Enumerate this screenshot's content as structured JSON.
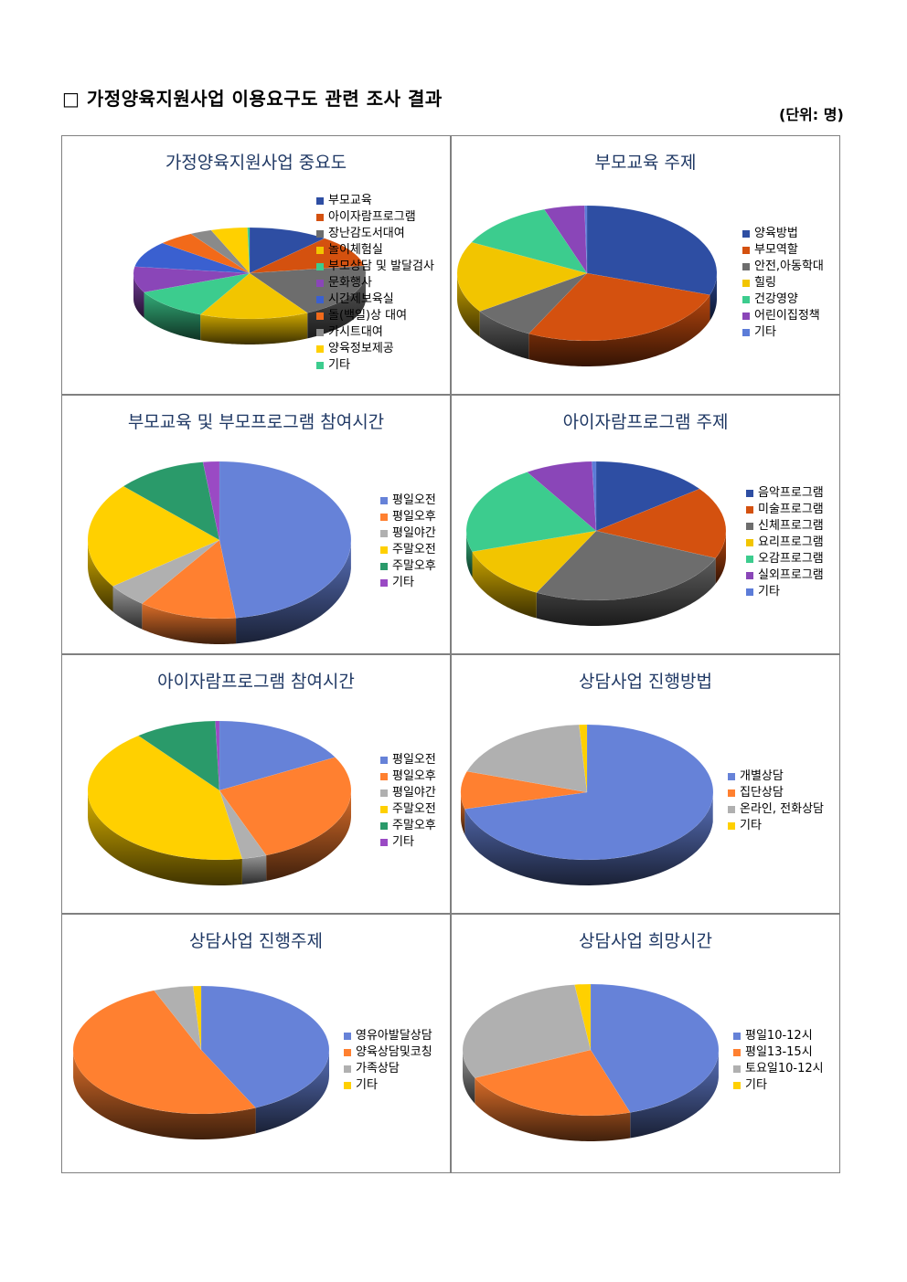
{
  "page": {
    "title": "□ 가정양육지원사업 이용요구도 관련 조사 결과",
    "unit": "(단위: 명)"
  },
  "chart_data": [
    {
      "type": "pie",
      "title": "가정양육지원사업 중요도",
      "categories": [
        "부모교육",
        "아이자람프로그램",
        "장난감도서대여",
        "놀이체험실",
        "부모상담 및 발달검사",
        "문화행사",
        "시간제보육실",
        "돌(백일)상 대여",
        "카시트대여",
        "양육정보제공",
        "기타"
      ],
      "values": [
        11,
        11,
        19,
        15,
        11,
        9,
        9,
        5,
        3,
        5,
        0.3
      ],
      "colors": [
        "#2e4ea3",
        "#d4510f",
        "#6d6d6d",
        "#f2c500",
        "#3ccc8e",
        "#8a46b8",
        "#3a60d0",
        "#f26a1a",
        "#8a8a8a",
        "#ffd000",
        "#3ccc8e"
      ],
      "start_deg": 90,
      "direction": "cw",
      "explode": 0
    },
    {
      "type": "pie",
      "title": "부모교육 주제",
      "categories": [
        "양육방법",
        "부모역할",
        "안전,아동학대",
        "힐링",
        "건강영양",
        "어린이집정책",
        "기타"
      ],
      "values": [
        30,
        27,
        8,
        17,
        12,
        5,
        0.3
      ],
      "colors": [
        "#2e4ea3",
        "#d4510f",
        "#6d6d6d",
        "#f2c500",
        "#3ccc8e",
        "#8a46b8",
        "#5c7cd8"
      ],
      "start_deg": 90,
      "direction": "cw",
      "explode": 0
    },
    {
      "type": "pie",
      "title": "부모교육 및 부모프로그램 참여시간",
      "categories": [
        "평일오전",
        "평일오후",
        "평일야간",
        "주말오전",
        "주말오후",
        "기타"
      ],
      "values": [
        48,
        12,
        5,
        22,
        11,
        2
      ],
      "colors": [
        "#6682d8",
        "#ff8030",
        "#b0b0b0",
        "#ffd000",
        "#2a9a6a",
        "#9a4ac4"
      ],
      "start_deg": 90,
      "direction": "cw",
      "explode": 0
    },
    {
      "type": "pie",
      "title": "아이자람프로그램 주제",
      "categories": [
        "음악프로그램",
        "미술프로그램",
        "신체프로그램",
        "요리프로그램",
        "오감프로그램",
        "실외프로그램",
        "기타"
      ],
      "values": [
        14,
        16,
        25,
        12,
        20,
        8,
        0.5
      ],
      "colors": [
        "#2e4ea3",
        "#d4510f",
        "#6d6d6d",
        "#f2c500",
        "#3ccc8e",
        "#8a46b8",
        "#5c7cd8"
      ],
      "start_deg": 90,
      "direction": "cw",
      "explode": 0
    },
    {
      "type": "pie",
      "title": "아이자람프로그램 참여시간",
      "categories": [
        "평일오전",
        "평일오후",
        "평일야간",
        "주말오전",
        "주말오후",
        "기타"
      ],
      "values": [
        17,
        27,
        3,
        42,
        10,
        0.5
      ],
      "colors": [
        "#6682d8",
        "#ff8030",
        "#b0b0b0",
        "#ffd000",
        "#2a9a6a",
        "#9a4ac4"
      ],
      "start_deg": 90,
      "direction": "cw",
      "explode": 0
    },
    {
      "type": "pie",
      "title": "상담사업 진행방법",
      "categories": [
        "개별상담",
        "집단상담",
        "온라인, 전화상담",
        "기타"
      ],
      "values": [
        71,
        9,
        19,
        1
      ],
      "colors": [
        "#6682d8",
        "#ff8030",
        "#b0b0b0",
        "#ffd000"
      ],
      "start_deg": 90,
      "direction": "cw",
      "explode": 0
    },
    {
      "type": "pie",
      "title": "상담사업 진행주제",
      "categories": [
        "영유아발달상담",
        "양육상담및코칭",
        "가족상담",
        "기타"
      ],
      "values": [
        43,
        51,
        5,
        1
      ],
      "colors": [
        "#6682d8",
        "#ff8030",
        "#b0b0b0",
        "#ffd000"
      ],
      "start_deg": 90,
      "direction": "cw",
      "explode": 0
    },
    {
      "type": "pie",
      "title": "상담사업 희망시간",
      "categories": [
        "평일10-12시",
        "평일13-15시",
        "토요일10-12시",
        "기타"
      ],
      "values": [
        45,
        23,
        30,
        2
      ],
      "colors": [
        "#6682d8",
        "#ff8030",
        "#b0b0b0",
        "#ffd000"
      ],
      "start_deg": 90,
      "direction": "cw",
      "explode": 0
    }
  ]
}
